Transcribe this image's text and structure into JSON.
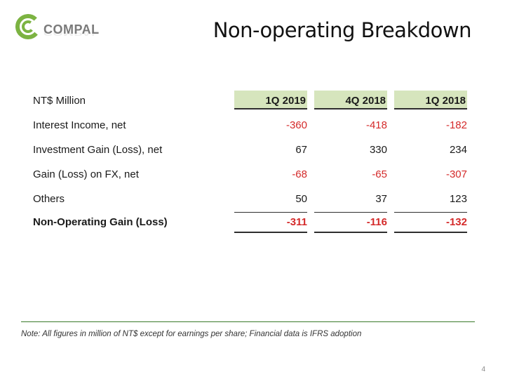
{
  "header": {
    "brand": "COMPAL",
    "title": "Non-operating Breakdown",
    "colors": {
      "brand_green": "#7cb342",
      "header_fill": "#d6e5bd",
      "negative": "#d42a2a",
      "rule": "#3a7a2a"
    }
  },
  "table": {
    "unit_label": "NT$ Million",
    "columns": [
      "1Q 2019",
      "4Q 2018",
      "1Q 2018"
    ],
    "rows": [
      {
        "label": "Interest Income, net",
        "values": [
          "-360",
          "-418",
          "-182"
        ]
      },
      {
        "label": "Investment Gain (Loss), net",
        "values": [
          "67",
          "330",
          "234"
        ]
      },
      {
        "label": "Gain (Loss) on FX, net",
        "values": [
          "-68",
          "-65",
          "-307"
        ]
      },
      {
        "label": "Others",
        "values": [
          "50",
          "37",
          "123"
        ]
      }
    ],
    "total": {
      "label": "Non-Operating Gain (Loss)",
      "values": [
        "-311",
        "-116",
        "-132"
      ]
    }
  },
  "footer": {
    "note": "Note: All figures in million of NT$ except for earnings per share; Financial data is IFRS adoption",
    "page_number": "4"
  }
}
